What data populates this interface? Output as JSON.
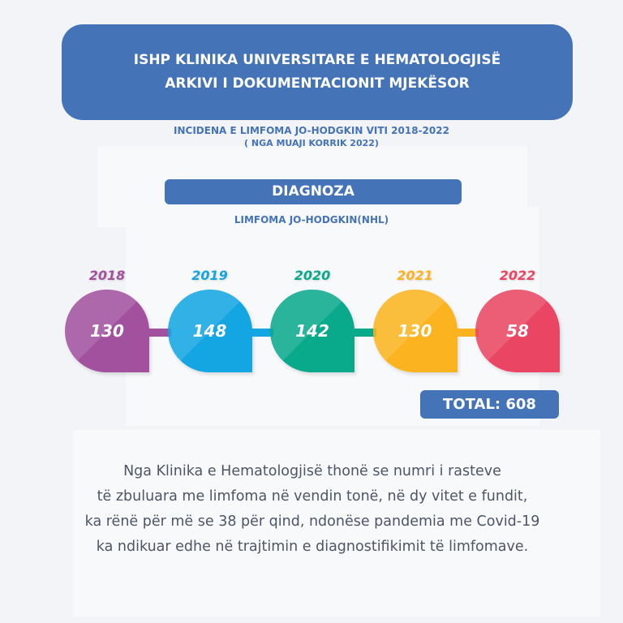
{
  "header": {
    "line1": "ISHP KLINIKA UNIVERSITARE E HEMATOLOGJISË",
    "line2": "ARKIVI I DOKUMENTACIONIT MJEKËSOR"
  },
  "subtitle": {
    "line1": "INCIDENA E  LIMFOMA JO-HODGKIN  VITI 2018-2022",
    "line2": "( NGA MUAJI KORRIK 2022)"
  },
  "diagnosis": {
    "label": "DIAGNOZA",
    "name": "LIMFOMA JO-HODGKIN(NHL)"
  },
  "timeline": [
    {
      "year": "2018",
      "value": "130",
      "color": "#a2519f"
    },
    {
      "year": "2019",
      "value": "148",
      "color": "#14a6e3"
    },
    {
      "year": "2020",
      "value": "142",
      "color": "#09a98c"
    },
    {
      "year": "2021",
      "value": "130",
      "color": "#fbb41f"
    },
    {
      "year": "2022",
      "value": "58",
      "color": "#ea4562"
    }
  ],
  "total": "TOTAL: 608",
  "paragraph": [
    "Nga Klinika e Hematologjisë thonë se numri i rasteve",
    "të  zbuluara me limfoma në vendin tonë, në dy vitet e fundit,",
    "ka rënë për më se 38 për qind,  ndonëse pandemia  me Covid-19",
    "ka ndikuar edhe në trajtimin e  diagnostifikimit të limfomave."
  ]
}
